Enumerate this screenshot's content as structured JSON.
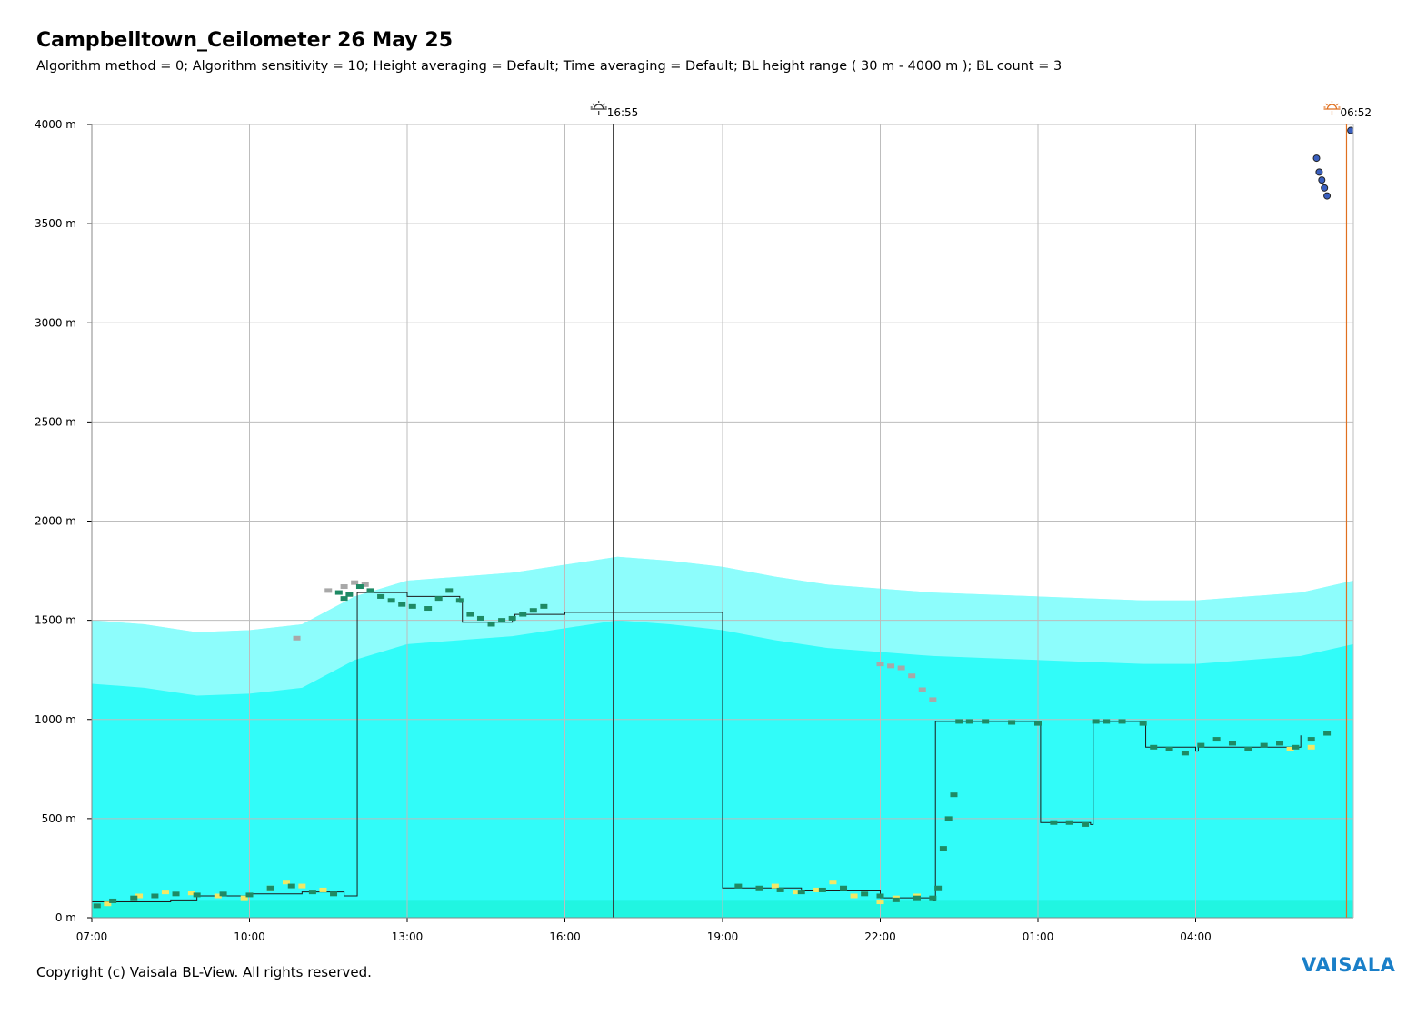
{
  "header": {
    "title": "Campbelltown_Ceilometer 26 May 25",
    "subtitle": "Algorithm method = 0; Algorithm sensitivity = 10; Height averaging = Default; Time averaging = Default; BL height range ( 30 m - 4000 m ); BL count = 3"
  },
  "footer": {
    "copyright": "Copyright (c) Vaisala BL-View. All rights reserved.",
    "logo_text": "VAISALA"
  },
  "colors": {
    "backscatter": "#1ffcf8",
    "backscatter_low": "#18f0d0",
    "bl_marker": "#1e8a64",
    "residual_marker": "#a8a8a8",
    "yellow_marker": "#f2e866",
    "sunset_icon": "#333333",
    "sunrise_icon": "#e07020",
    "grid": "#bdbdbd",
    "logo": "#1a7fc8"
  },
  "chart_data": {
    "type": "heatmap",
    "title": "Campbelltown_Ceilometer 26 May 25",
    "xlabel": "",
    "ylabel": "",
    "x_range_hours": [
      7.0,
      31.0
    ],
    "ylim": [
      0,
      4000
    ],
    "grid": true,
    "x_ticks": [
      {
        "hour": 7,
        "label": "07:00"
      },
      {
        "hour": 10,
        "label": "10:00"
      },
      {
        "hour": 13,
        "label": "13:00"
      },
      {
        "hour": 16,
        "label": "16:00"
      },
      {
        "hour": 19,
        "label": "19:00"
      },
      {
        "hour": 22,
        "label": "22:00"
      },
      {
        "hour": 25,
        "label": "01:00"
      },
      {
        "hour": 28,
        "label": "04:00"
      }
    ],
    "y_ticks": [
      {
        "value": 0,
        "label": "0 m"
      },
      {
        "value": 500,
        "label": "500 m"
      },
      {
        "value": 1000,
        "label": "1000 m"
      },
      {
        "value": 1500,
        "label": "1500 m"
      },
      {
        "value": 2000,
        "label": "2000 m"
      },
      {
        "value": 2500,
        "label": "2500 m"
      },
      {
        "value": 3000,
        "label": "3000 m"
      },
      {
        "value": 3500,
        "label": "3500 m"
      },
      {
        "value": 4000,
        "label": "4000 m"
      }
    ],
    "sun_events": [
      {
        "type": "sunset",
        "hour": 16.92,
        "label": "16:55",
        "icon": "sunset-icon"
      },
      {
        "type": "sunrise",
        "hour": 30.87,
        "label": "06:52",
        "icon": "sunrise-icon"
      }
    ],
    "aerosol_layer_top": {
      "hours": [
        7.0,
        8.0,
        9.0,
        10.0,
        11.0,
        12.0,
        13.0,
        14.0,
        15.0,
        16.0,
        17.0,
        18.0,
        19.0,
        20.0,
        21.0,
        22.0,
        23.0,
        24.0,
        25.0,
        26.0,
        27.0,
        28.0,
        29.0,
        30.0,
        31.0
      ],
      "heights": [
        1500,
        1480,
        1440,
        1450,
        1480,
        1620,
        1700,
        1720,
        1740,
        1780,
        1820,
        1800,
        1770,
        1720,
        1680,
        1660,
        1640,
        1630,
        1620,
        1610,
        1600,
        1600,
        1620,
        1640,
        1700
      ]
    },
    "bl_height_step": {
      "hours": [
        7.0,
        8.5,
        9.0,
        10.0,
        11.0,
        11.8,
        12.05,
        13.0,
        14.0,
        14.05,
        15.0,
        15.05,
        16.0,
        19.0,
        19.8,
        20.5,
        21.5,
        22.0,
        23.0,
        23.05,
        25.0,
        25.05,
        26.0,
        26.05,
        27.0,
        27.05,
        28.0,
        28.05,
        30.0
      ],
      "heights": [
        80,
        90,
        110,
        120,
        130,
        110,
        1640,
        1620,
        1590,
        1490,
        1500,
        1530,
        1540,
        150,
        150,
        140,
        140,
        100,
        90,
        990,
        980,
        480,
        470,
        990,
        990,
        860,
        840,
        860,
        920
      ]
    },
    "bl_points": {
      "name": "",
      "hours": [
        7.1,
        7.4,
        7.8,
        8.2,
        8.6,
        9.0,
        9.5,
        10.0,
        10.4,
        10.8,
        11.2,
        11.6,
        11.7,
        11.8,
        11.9,
        12.1,
        12.3,
        12.5,
        12.7,
        12.9,
        13.1,
        13.4,
        13.6,
        13.8,
        14.0,
        14.2,
        14.4,
        14.6,
        14.8,
        15.0,
        15.2,
        15.4,
        15.6,
        19.3,
        19.7,
        20.1,
        20.5,
        20.9,
        21.3,
        21.7,
        22.0,
        22.3,
        22.7,
        23.0,
        23.1,
        23.2,
        23.3,
        23.4,
        23.5,
        23.7,
        24.0,
        24.5,
        25.0,
        25.3,
        25.6,
        25.9,
        26.1,
        26.3,
        26.6,
        27.0,
        27.2,
        27.5,
        27.8,
        28.1,
        28.4,
        28.7,
        29.0,
        29.3,
        29.6,
        29.9,
        30.2,
        30.5
      ],
      "heights": [
        60,
        85,
        100,
        110,
        120,
        115,
        120,
        115,
        150,
        160,
        130,
        120,
        1640,
        1610,
        1630,
        1670,
        1650,
        1620,
        1600,
        1580,
        1570,
        1560,
        1610,
        1650,
        1600,
        1530,
        1510,
        1480,
        1500,
        1510,
        1530,
        1550,
        1570,
        160,
        150,
        140,
        130,
        140,
        150,
        120,
        110,
        90,
        100,
        100,
        150,
        350,
        500,
        620,
        990,
        990,
        990,
        985,
        980,
        480,
        480,
        470,
        990,
        990,
        990,
        980,
        860,
        850,
        830,
        870,
        900,
        880,
        850,
        870,
        880,
        860,
        900,
        930
      ]
    },
    "residual_points": {
      "name": "",
      "hours": [
        11.5,
        11.8,
        12.0,
        12.2,
        22.0,
        22.2,
        22.4,
        22.6,
        22.8,
        23.0,
        10.9
      ],
      "heights": [
        1650,
        1670,
        1690,
        1680,
        1280,
        1270,
        1260,
        1220,
        1150,
        1100,
        1410
      ]
    },
    "yellow_points": {
      "name": "",
      "hours": [
        7.3,
        7.9,
        8.4,
        8.9,
        9.4,
        9.9,
        10.4,
        10.7,
        11.0,
        11.4,
        20.0,
        20.4,
        20.8,
        21.1,
        21.5,
        22.0,
        22.3,
        22.7,
        29.8,
        30.2
      ],
      "heights": [
        70,
        110,
        130,
        125,
        110,
        100,
        150,
        180,
        160,
        140,
        160,
        130,
        140,
        180,
        110,
        80,
        100,
        110,
        850,
        860
      ]
    },
    "cloud_points": {
      "name": "",
      "hours": [
        30.3,
        30.35,
        30.4,
        30.45,
        30.5,
        30.95
      ],
      "heights": [
        3830,
        3760,
        3720,
        3680,
        3640,
        3970
      ]
    }
  }
}
